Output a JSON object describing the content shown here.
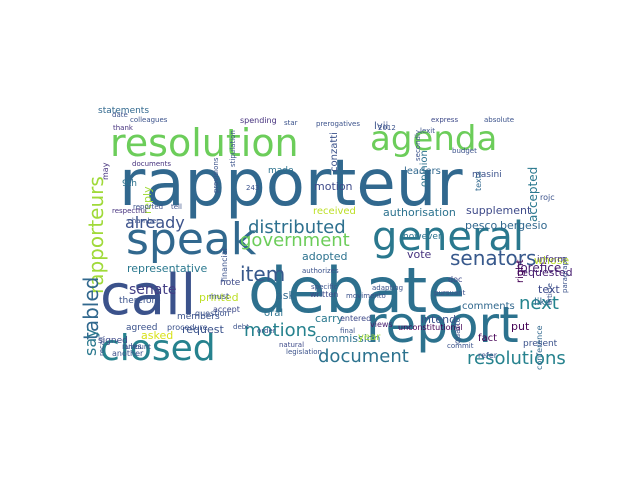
{
  "words": [
    {
      "text": "rapporteur",
      "color": "#31688e"
    },
    {
      "text": "debate",
      "color": "#2d708e"
    },
    {
      "text": "call",
      "color": "#3b528b"
    },
    {
      "text": "report",
      "color": "#2c728e"
    },
    {
      "text": "speak",
      "color": "#31688e"
    },
    {
      "text": "resolution",
      "color": "#6ccd5a"
    },
    {
      "text": "agenda",
      "color": "#6ccd5a"
    },
    {
      "text": "general",
      "color": "#2a788e"
    },
    {
      "text": "closed",
      "color": "#26828e"
    },
    {
      "text": "government",
      "color": "#6ccd5a"
    },
    {
      "text": "senators",
      "color": "#38598c"
    },
    {
      "text": "distributed",
      "color": "#2d708e"
    },
    {
      "text": "rapporteurs",
      "color": "#a0da39"
    },
    {
      "text": "item",
      "color": "#38598c"
    },
    {
      "text": "motions",
      "color": "#26828e"
    },
    {
      "text": "document",
      "color": "#2c728e"
    },
    {
      "text": "resolutions",
      "color": "#26828e"
    },
    {
      "text": "next",
      "color": "#25848e"
    },
    {
      "text": "already",
      "color": "#3b528b"
    },
    {
      "text": "tabled",
      "color": "#31688e"
    },
    {
      "text": "say",
      "color": "#2a788e"
    },
    {
      "text": "senate",
      "color": "#433e85"
    },
    {
      "text": "representative",
      "color": "#2a788e"
    },
    {
      "text": "supplement",
      "color": "#3e4a89"
    },
    {
      "text": "authorisation",
      "color": "#2c728e"
    },
    {
      "text": "received",
      "color": "#bddf26"
    },
    {
      "text": "ask",
      "color": "#31688e"
    },
    {
      "text": "accepted",
      "color": "#2a788e"
    },
    {
      "text": "motion",
      "color": "#3e4a89"
    },
    {
      "text": "commission",
      "color": "#2c728e"
    },
    {
      "text": "request",
      "color": "#3b528b"
    },
    {
      "text": "oral",
      "color": "#2c728e"
    },
    {
      "text": "carry",
      "color": "#2a788e"
    },
    {
      "text": "adopted",
      "color": "#2c728e"
    },
    {
      "text": "vote",
      "color": "#46327e"
    },
    {
      "text": "made",
      "color": "#2c728e"
    },
    {
      "text": "printed",
      "color": "#bddf26"
    },
    {
      "text": "lorefice",
      "color": "#481f70"
    },
    {
      "text": "requested",
      "color": "#481f70"
    },
    {
      "text": "comments",
      "color": "#31688e"
    },
    {
      "text": "text",
      "color": "#3e4a89"
    },
    {
      "text": "whose",
      "color": "#bddf26"
    },
    {
      "text": "intend",
      "color": "#3b528b"
    },
    {
      "text": "pesco",
      "color": "#31688e"
    },
    {
      "text": "bergesio",
      "color": "#31688e"
    },
    {
      "text": "reply",
      "color": "#a0da39"
    },
    {
      "text": "9th",
      "color": "#2c728e"
    },
    {
      "text": "note",
      "color": "#3e4a89"
    },
    {
      "text": "must",
      "color": "#3b528b"
    },
    {
      "text": "accept",
      "color": "#3e4a89"
    },
    {
      "text": "written",
      "color": "#3e4a89"
    },
    {
      "text": "however",
      "color": "#2c728e"
    },
    {
      "text": "leaders",
      "color": "#31688e"
    },
    {
      "text": "texts",
      "color": "#31688e"
    },
    {
      "text": "statements",
      "color": "#31688e"
    },
    {
      "text": "spending",
      "color": "#46327e"
    },
    {
      "text": "conzatti",
      "color": "#3b528b"
    },
    {
      "text": "opinion",
      "color": "#2c728e"
    },
    {
      "text": "inform",
      "color": "#46327e"
    },
    {
      "text": "put",
      "color": "#440154"
    },
    {
      "text": "asked",
      "color": "#d8e219"
    },
    {
      "text": "signed",
      "color": "#3e4a89"
    },
    {
      "text": "members",
      "color": "#3b528b"
    },
    {
      "text": "therefore",
      "color": "#3b528b"
    },
    {
      "text": "agreed",
      "color": "#3b528b"
    },
    {
      "text": "year",
      "color": "#a0da39"
    },
    {
      "text": "like",
      "color": "#31688e"
    },
    {
      "text": "conference",
      "color": "#31688e"
    },
    {
      "text": "entered",
      "color": "#3e4a89"
    },
    {
      "text": "views",
      "color": "#481f70"
    },
    {
      "text": "unconstitutional",
      "color": "#440154"
    },
    {
      "text": "lvii",
      "color": "#3b528b"
    },
    {
      "text": "prerogatives",
      "color": "#3b528b"
    },
    {
      "text": "star",
      "color": "#3b528b"
    },
    {
      "text": "express",
      "color": "#3e4a89"
    },
    {
      "text": "absolute",
      "color": "#3b528b"
    },
    {
      "text": "colleagues",
      "color": "#3b528b"
    },
    {
      "text": "thank",
      "color": "#46327e"
    },
    {
      "text": "date",
      "color": "#3b528b"
    },
    {
      "text": "natural",
      "color": "#3e4a89"
    },
    {
      "text": "order",
      "color": "#3b528b"
    },
    {
      "text": "right",
      "color": "#440154"
    },
    {
      "text": "fact",
      "color": "#440154"
    },
    {
      "text": "present",
      "color": "#3b528b"
    },
    {
      "text": "refer",
      "color": "#3b528b"
    },
    {
      "text": "quarto",
      "color": "#3b528b"
    },
    {
      "text": "masini",
      "color": "#3b528b"
    },
    {
      "text": "rules",
      "color": "#3b528b"
    },
    {
      "text": "amount",
      "color": "#3b528b"
    },
    {
      "text": "another",
      "color": "#3b528b"
    },
    {
      "text": "doc",
      "color": "#3e4a89"
    },
    {
      "text": "procedure",
      "color": "#3b528b"
    },
    {
      "text": "question",
      "color": "#3b528b"
    },
    {
      "text": "recall",
      "color": "#3b528b"
    },
    {
      "text": "may",
      "color": "#46327e"
    },
    {
      "text": "2012",
      "color": "#3b528b"
    },
    {
      "text": "243",
      "color": "#3b528b"
    },
    {
      "text": "reported",
      "color": "#3b528b"
    },
    {
      "text": "respectful",
      "color": "#46327e"
    },
    {
      "text": "tell",
      "color": "#3b528b"
    },
    {
      "text": "debt",
      "color": "#3b528b"
    },
    {
      "text": "commit",
      "color": "#3b528b"
    },
    {
      "text": "final",
      "color": "#3b528b"
    },
    {
      "text": "article",
      "color": "#3b528b"
    },
    {
      "text": "paragraph",
      "color": "#3b528b"
    },
    {
      "text": "pursuant",
      "color": "#3b528b"
    },
    {
      "text": "specific",
      "color": "#3b528b"
    },
    {
      "text": "documents",
      "color": "#46327e"
    },
    {
      "text": "budget",
      "color": "#3b528b"
    },
    {
      "text": "movimento",
      "color": "#3b528b"
    },
    {
      "text": "authorizes",
      "color": "#3b528b"
    },
    {
      "text": "rojc",
      "color": "#3b528b"
    },
    {
      "text": "lexit",
      "color": "#3b528b"
    },
    {
      "text": "chamber",
      "color": "#3b528b"
    },
    {
      "text": "financial",
      "color": "#3b528b"
    },
    {
      "text": "legislation",
      "color": "#3b528b"
    },
    {
      "text": "adapting",
      "color": "#3b528b"
    },
    {
      "text": "provisions",
      "color": "#3b528b"
    },
    {
      "text": "secondly",
      "color": "#3b528b"
    },
    {
      "text": "stipulation",
      "color": "#3b528b"
    }
  ]
}
